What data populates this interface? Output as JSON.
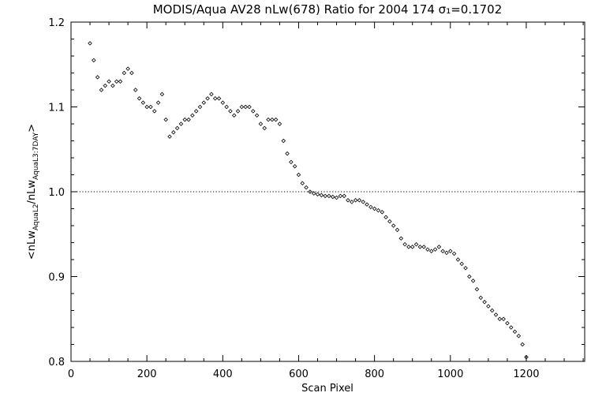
{
  "chart_data": {
    "type": "scatter",
    "title": "MODIS/Aqua AV28 nLw(678) Ratio for 2004 174 σ₁=0.1702",
    "xlabel": "Scan Pixel",
    "ylabel": "<nLw_AquaL2/nLw_AquaL3:7DAY>",
    "xlim": [
      0,
      1354
    ],
    "ylim": [
      0.8,
      1.2
    ],
    "xticks": [
      0,
      200,
      400,
      600,
      800,
      1000,
      1200
    ],
    "xtick_labels": [
      "0",
      "200",
      "400",
      "600",
      "800",
      "1000",
      "1200"
    ],
    "yticks": [
      0.8,
      0.9,
      1.0,
      1.1,
      1.2
    ],
    "ytick_labels": [
      "0.8",
      "0.9",
      "1.0",
      "1.1",
      "1.2"
    ],
    "reference_line": {
      "y": 1.0,
      "style": "dotted"
    },
    "marker": "open-diamond",
    "grid": false,
    "series": [
      {
        "x": [
          50,
          60,
          70,
          80,
          90,
          100,
          110,
          120,
          130,
          140,
          150,
          160,
          170,
          180,
          190,
          200,
          210,
          220,
          230,
          240,
          250,
          260,
          270,
          280,
          290,
          300,
          310,
          320,
          330,
          340,
          350,
          360,
          370,
          380,
          390,
          400,
          410,
          420,
          430,
          440,
          450,
          460,
          470,
          480,
          490,
          500,
          510,
          520,
          530,
          540,
          550,
          560,
          570,
          580,
          590,
          600,
          610,
          620,
          630,
          640,
          650,
          660,
          670,
          680,
          690,
          700,
          710,
          720,
          730,
          740,
          750,
          760,
          770,
          780,
          790,
          800,
          810,
          820,
          830,
          840,
          850,
          860,
          870,
          880,
          890,
          900,
          910,
          920,
          930,
          940,
          950,
          960,
          970,
          980,
          990,
          1000,
          1010,
          1020,
          1030,
          1040,
          1050,
          1060,
          1070,
          1080,
          1090,
          1100,
          1110,
          1120,
          1130,
          1140,
          1150,
          1160,
          1170,
          1180,
          1190,
          1200
        ],
        "y": [
          1.175,
          1.155,
          1.135,
          1.12,
          1.125,
          1.13,
          1.125,
          1.13,
          1.13,
          1.14,
          1.145,
          1.14,
          1.12,
          1.11,
          1.105,
          1.1,
          1.1,
          1.095,
          1.105,
          1.115,
          1.085,
          1.065,
          1.07,
          1.075,
          1.08,
          1.085,
          1.085,
          1.09,
          1.095,
          1.1,
          1.105,
          1.11,
          1.115,
          1.11,
          1.11,
          1.105,
          1.1,
          1.095,
          1.09,
          1.095,
          1.1,
          1.1,
          1.1,
          1.095,
          1.09,
          1.08,
          1.075,
          1.085,
          1.085,
          1.085,
          1.08,
          1.06,
          1.045,
          1.035,
          1.03,
          1.02,
          1.01,
          1.005,
          1.0,
          0.998,
          0.997,
          0.996,
          0.995,
          0.995,
          0.994,
          0.993,
          0.995,
          0.995,
          0.99,
          0.988,
          0.99,
          0.99,
          0.988,
          0.985,
          0.982,
          0.98,
          0.978,
          0.976,
          0.97,
          0.965,
          0.96,
          0.955,
          0.945,
          0.938,
          0.935,
          0.935,
          0.938,
          0.935,
          0.935,
          0.932,
          0.93,
          0.932,
          0.935,
          0.93,
          0.928,
          0.93,
          0.927,
          0.92,
          0.915,
          0.91,
          0.9,
          0.895,
          0.885,
          0.875,
          0.87,
          0.865,
          0.86,
          0.855,
          0.85,
          0.85,
          0.845,
          0.84,
          0.835,
          0.83,
          0.82,
          0.805
        ]
      }
    ]
  }
}
